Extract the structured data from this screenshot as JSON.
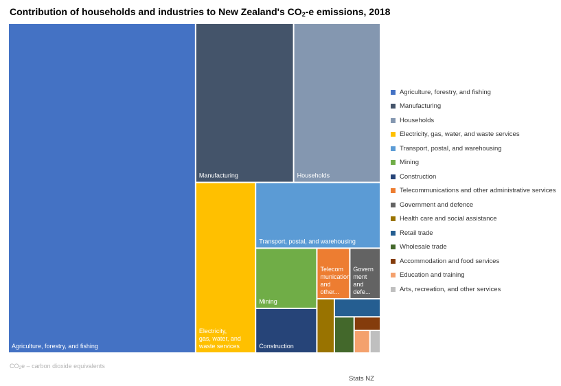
{
  "chart_data": {
    "type": "treemap",
    "title": "Contribution of households and industries to New Zealand's CO2-e emissions, 2018",
    "title_parts": {
      "before": "Contribution of households and industries to New Zealand's CO",
      "subscript": "2",
      "after": "-e emissions, 2018"
    },
    "categories": [
      {
        "name": "Agriculture, forestry, and fishing",
        "label": "Agriculture, forestry, and fishing",
        "value": 51.9,
        "color": "#4472c4"
      },
      {
        "name": "Manufacturing",
        "label": "Manufacturing",
        "value": 13.1,
        "color": "#44546a"
      },
      {
        "name": "Households",
        "label": "Households",
        "value": 11.6,
        "color": "#8497b0"
      },
      {
        "name": "Electricity, gas, water, and waste services",
        "label": "Electricity, gas, water, and waste services",
        "value": 8.6,
        "color": "#ffc000"
      },
      {
        "name": "Transport, postal, and warehousing",
        "label": "Transport, postal, and warehousing",
        "value": 6.9,
        "color": "#5b9bd5"
      },
      {
        "name": "Mining",
        "label": "Mining",
        "value": 3.1,
        "color": "#70ad47"
      },
      {
        "name": "Construction",
        "label": "Construction",
        "value": 2.3,
        "color": "#264478"
      },
      {
        "name": "Telecommunications and other administrative services",
        "label": "Telecom munications and other...",
        "value": 1.4,
        "color": "#ed7d31"
      },
      {
        "name": "Government and defence",
        "label": "Govern ment and defe...",
        "value": 1.3,
        "color": "#636363"
      },
      {
        "name": "Health care and social assistance",
        "label": "",
        "value": 0.8,
        "color": "#997300"
      },
      {
        "name": "Retail trade",
        "label": "",
        "value": 0.7,
        "color": "#255e91"
      },
      {
        "name": "Wholesale trade",
        "label": "",
        "value": 0.6,
        "color": "#43682b"
      },
      {
        "name": "Accommodation and food services",
        "label": "",
        "value": 0.3,
        "color": "#843c0c"
      },
      {
        "name": "Education and training",
        "label": "",
        "value": 0.3,
        "color": "#f4a16d"
      },
      {
        "name": "Arts, recreation, and other services",
        "label": "",
        "value": 0.2,
        "color": "#bfbfbf"
      }
    ],
    "legend_position": "right"
  },
  "footnote": {
    "before": "CO",
    "subscript": "2",
    "after": "e – carbon dioxide equivalents"
  },
  "source": "Stats NZ"
}
